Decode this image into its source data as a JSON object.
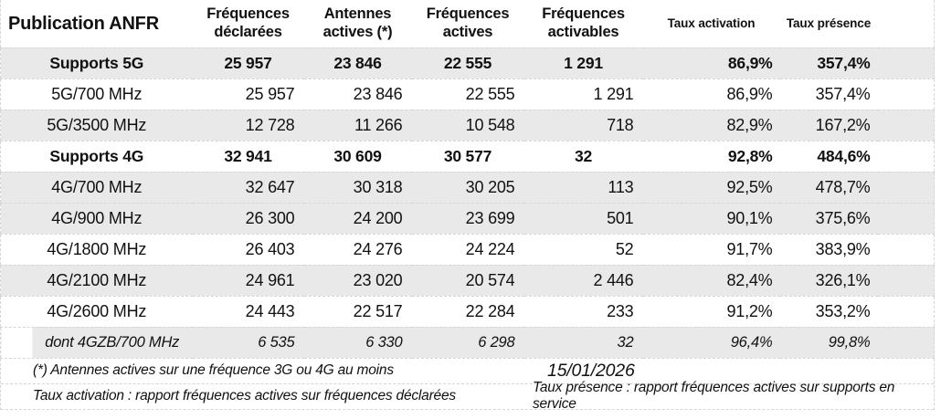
{
  "colors": {
    "shade": "#e9e9e9",
    "border": "#d6d6d6",
    "text": "#111111"
  },
  "table": {
    "corner_label": "Publication ANFR",
    "columns": [
      "Fréquences déclarées",
      "Antennes actives (*)",
      "Fréquences actives",
      "Fréquences activables",
      "Taux activation",
      "Taux présence"
    ],
    "rows": [
      {
        "label": "Supports 5G",
        "values": [
          "25 957",
          "23 846",
          "22 555",
          "1 291",
          "86,9%",
          "357,4%"
        ]
      },
      {
        "label": "5G/700 MHz",
        "values": [
          "25 957",
          "23 846",
          "22 555",
          "1 291",
          "86,9%",
          "357,4%"
        ]
      },
      {
        "label": "5G/3500 MHz",
        "values": [
          "12 728",
          "11 266",
          "10 548",
          "718",
          "82,9%",
          "167,2%"
        ]
      },
      {
        "label": "Supports 4G",
        "values": [
          "32 941",
          "30 609",
          "30 577",
          "32",
          "92,8%",
          "484,6%"
        ]
      },
      {
        "label": "4G/700 MHz",
        "values": [
          "32 647",
          "30 318",
          "30 205",
          "113",
          "92,5%",
          "478,7%"
        ]
      },
      {
        "label": "4G/900 MHz",
        "values": [
          "26 300",
          "24 200",
          "23 699",
          "501",
          "90,1%",
          "375,6%"
        ]
      },
      {
        "label": "4G/1800 MHz",
        "values": [
          "26 403",
          "24 276",
          "24 224",
          "52",
          "91,7%",
          "383,9%"
        ]
      },
      {
        "label": "4G/2100 MHz",
        "values": [
          "24 961",
          "23 020",
          "20 574",
          "2 446",
          "82,4%",
          "326,1%"
        ]
      },
      {
        "label": "4G/2600 MHz",
        "values": [
          "24 443",
          "22 517",
          "22 284",
          "233",
          "91,2%",
          "353,2%"
        ]
      },
      {
        "label": "dont 4GZB/700 MHz",
        "values": [
          "6 535",
          "6 330",
          "6 298",
          "32",
          "96,4%",
          "99,8%"
        ]
      }
    ]
  },
  "footer": {
    "note_antennes": "(*) Antennes actives sur une fréquence 3G ou 4G au moins",
    "date": "15/01/2026",
    "note_taux_activation": "Taux activation : rapport fréquences actives sur fréquences déclarées",
    "note_taux_presence": "Taux présence : rapport fréquences actives sur supports en service"
  }
}
